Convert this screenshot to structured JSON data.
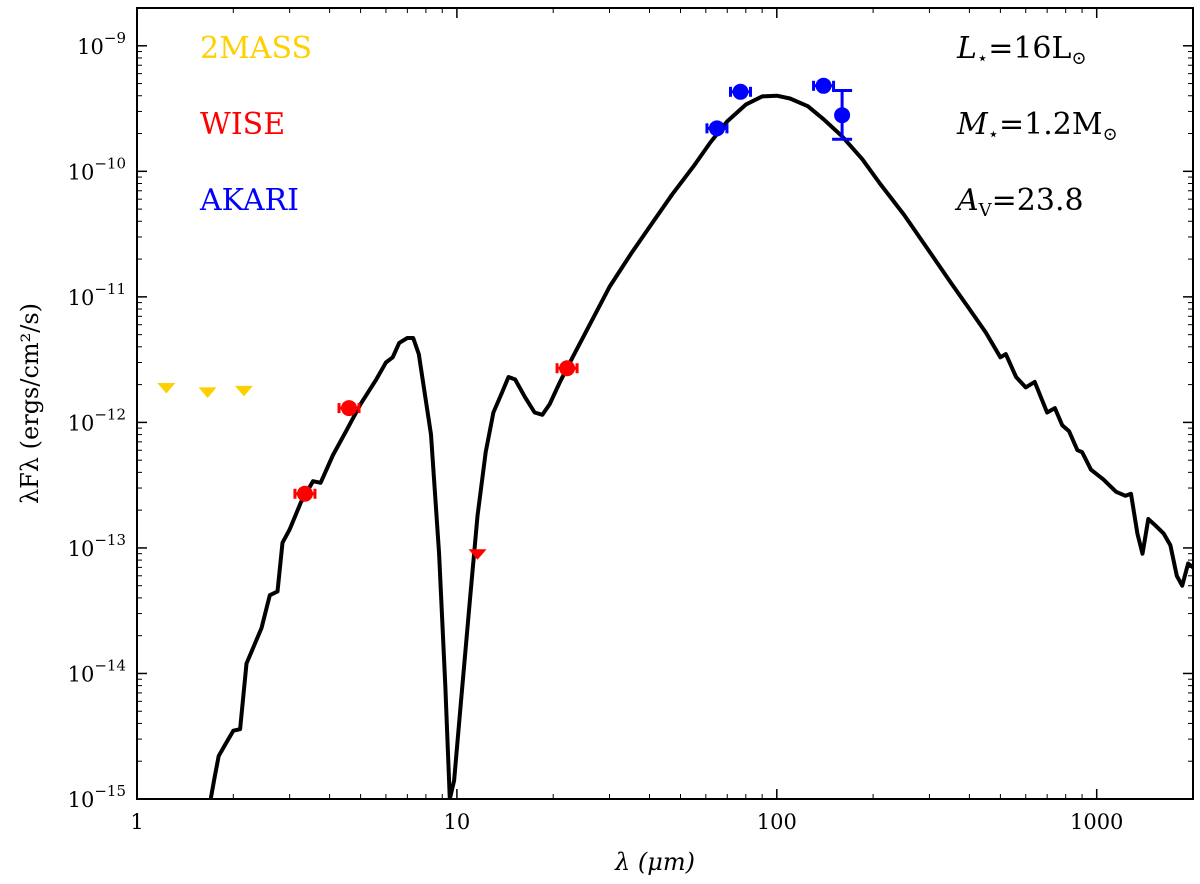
{
  "chart_data": {
    "type": "scatter",
    "title": "",
    "xlabel": "λ (μm)",
    "ylabel": "λFλ (ergs/cm²/s)",
    "xscale": "log",
    "yscale": "log",
    "xlim": [
      1,
      2000
    ],
    "ylim": [
      1e-15,
      2e-09
    ],
    "x_ticks": [
      {
        "value": 1,
        "label": "1"
      },
      {
        "value": 10,
        "label": "10"
      },
      {
        "value": 100,
        "label": "100"
      },
      {
        "value": 1000,
        "label": "1000"
      }
    ],
    "y_ticks": [
      {
        "value": 1e-15,
        "base": "10",
        "exp": "−15"
      },
      {
        "value": 1e-14,
        "base": "10",
        "exp": "−14"
      },
      {
        "value": 1e-13,
        "base": "10",
        "exp": "−13"
      },
      {
        "value": 1e-12,
        "base": "10",
        "exp": "−12"
      },
      {
        "value": 1e-11,
        "base": "10",
        "exp": "−11"
      },
      {
        "value": 1e-10,
        "base": "10",
        "exp": "−10"
      },
      {
        "value": 1e-09,
        "base": "10",
        "exp": "−9"
      }
    ],
    "legend": [
      {
        "label": "2MASS",
        "color": "#ffd000"
      },
      {
        "label": "WISE",
        "color": "#ff0000"
      },
      {
        "label": "AKARI",
        "color": "#0000ff"
      }
    ],
    "parameters": [
      {
        "sym": "L",
        "sub": "⋆",
        "rest": "=16L",
        "tail": "⊙"
      },
      {
        "sym": "M",
        "sub": "⋆",
        "rest": "=1.2M",
        "tail": "⊙"
      },
      {
        "sym": "A",
        "sub": "V",
        "rest": "=23.8",
        "tail": ""
      }
    ],
    "series": [
      {
        "name": "model",
        "kind": "line",
        "color": "#000000",
        "points": [
          [
            1.7,
            1e-15
          ],
          [
            1.75,
            1.5e-15
          ],
          [
            1.8,
            2.2e-15
          ],
          [
            1.9,
            2.8e-15
          ],
          [
            2.0,
            3.5e-15
          ],
          [
            2.1,
            3.6e-15
          ],
          [
            2.2,
            1.2e-14
          ],
          [
            2.45,
            2.3e-14
          ],
          [
            2.6,
            4.2e-14
          ],
          [
            2.75,
            4.5e-14
          ],
          [
            2.85,
            1.1e-13
          ],
          [
            3.0,
            1.4e-13
          ],
          [
            3.25,
            2.3e-13
          ],
          [
            3.55,
            3.4e-13
          ],
          [
            3.75,
            3.3e-13
          ],
          [
            4.1,
            5.5e-13
          ],
          [
            4.5,
            8.5e-13
          ],
          [
            5.0,
            1.4e-12
          ],
          [
            5.6,
            2.2e-12
          ],
          [
            6.0,
            3e-12
          ],
          [
            6.3,
            3.3e-12
          ],
          [
            6.6,
            4.3e-12
          ],
          [
            7.0,
            4.7e-12
          ],
          [
            7.3,
            4.7e-12
          ],
          [
            7.6,
            3.5e-12
          ],
          [
            8.3,
            8e-13
          ],
          [
            8.8,
            9e-14
          ],
          [
            9.2,
            8e-15
          ],
          [
            9.5,
            1e-15
          ],
          [
            9.8,
            1.4e-15
          ],
          [
            10.3,
            6e-15
          ],
          [
            11.0,
            4e-14
          ],
          [
            11.6,
            1.8e-13
          ],
          [
            12.3,
            5.8e-13
          ],
          [
            13.0,
            1.2e-12
          ],
          [
            13.8,
            1.7e-12
          ],
          [
            14.5,
            2.3e-12
          ],
          [
            15.2,
            2.2e-12
          ],
          [
            16.3,
            1.6e-12
          ],
          [
            17.5,
            1.2e-12
          ],
          [
            18.5,
            1.15e-12
          ],
          [
            19.5,
            1.4e-12
          ],
          [
            21,
            2.1e-12
          ],
          [
            23,
            3.3e-12
          ],
          [
            26,
            6e-12
          ],
          [
            30,
            1.2e-11
          ],
          [
            35,
            2.2e-11
          ],
          [
            40,
            3.6e-11
          ],
          [
            47,
            6.5e-11
          ],
          [
            55,
            1.1e-10
          ],
          [
            62,
            1.7e-10
          ],
          [
            70,
            2.5e-10
          ],
          [
            80,
            3.4e-10
          ],
          [
            90,
            3.95e-10
          ],
          [
            100,
            4e-10
          ],
          [
            110,
            3.8e-10
          ],
          [
            125,
            3.3e-10
          ],
          [
            140,
            2.6e-10
          ],
          [
            160,
            1.9e-10
          ],
          [
            185,
            1.25e-10
          ],
          [
            210,
            8e-11
          ],
          [
            250,
            4.5e-11
          ],
          [
            300,
            2.3e-11
          ],
          [
            350,
            1.3e-11
          ],
          [
            400,
            8e-12
          ],
          [
            450,
            5.2e-12
          ],
          [
            500,
            3.3e-12
          ],
          [
            520,
            3.5e-12
          ],
          [
            560,
            2.3e-12
          ],
          [
            600,
            1.9e-12
          ],
          [
            640,
            2.1e-12
          ],
          [
            700,
            1.2e-12
          ],
          [
            740,
            1.3e-12
          ],
          [
            780,
            9.5e-13
          ],
          [
            820,
            8.5e-13
          ],
          [
            870,
            6e-13
          ],
          [
            900,
            5.8e-13
          ],
          [
            960,
            4.2e-13
          ],
          [
            1050,
            3.5e-13
          ],
          [
            1150,
            2.8e-13
          ],
          [
            1230,
            2.6e-13
          ],
          [
            1280,
            2.7e-13
          ],
          [
            1340,
            1.3e-13
          ],
          [
            1390,
            9e-14
          ],
          [
            1450,
            1.7e-13
          ],
          [
            1530,
            1.5e-13
          ],
          [
            1620,
            1.3e-13
          ],
          [
            1700,
            1.05e-13
          ],
          [
            1780,
            6e-14
          ],
          [
            1850,
            5e-14
          ],
          [
            1930,
            7.5e-14
          ],
          [
            2000,
            7e-14
          ]
        ]
      },
      {
        "name": "2MASS",
        "kind": "upper-limit",
        "color": "#ffd000",
        "points": [
          [
            1.235,
            1.9e-12
          ],
          [
            1.662,
            1.75e-12
          ],
          [
            2.159,
            1.8e-12
          ]
        ]
      },
      {
        "name": "WISE",
        "kind": "points",
        "color": "#ff0000",
        "points": [
          [
            3.35,
            2.7e-13
          ],
          [
            4.6,
            1.3e-12
          ],
          [
            22.1,
            2.7e-12
          ]
        ]
      },
      {
        "name": "WISE-limit",
        "kind": "upper-limit",
        "color": "#ff0000",
        "points": [
          [
            11.6,
            9e-14
          ]
        ]
      },
      {
        "name": "AKARI",
        "kind": "points",
        "color": "#0000ff",
        "points": [
          [
            65,
            2.2e-10
          ],
          [
            77,
            4.3e-10
          ],
          [
            140,
            4.8e-10
          ],
          [
            160,
            2.8e-10
          ]
        ],
        "yerr": [
          null,
          null,
          null,
          [
            1.8e-10,
            4.4e-10
          ]
        ]
      }
    ]
  }
}
